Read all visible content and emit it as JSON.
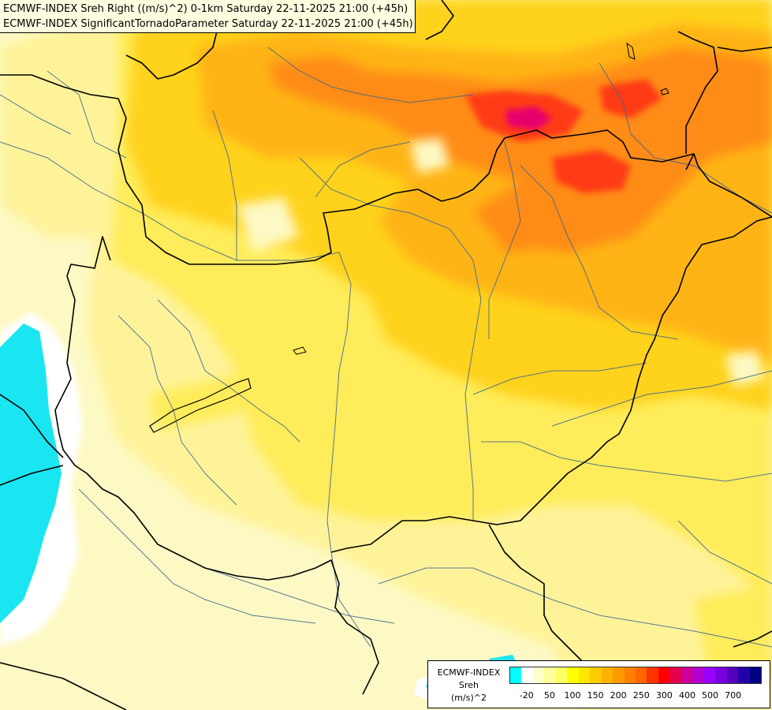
{
  "header": {
    "line1": "ECMWF-INDEX Sreh Right ((m/s)^2) 0-1km Saturday 22-11-2025 21:00 (+45h)",
    "line2": "ECMWF-INDEX SignificantTornadoParameter Saturday 22-11-2025 21:00 (+45h)"
  },
  "legend": {
    "source": "ECMWF-INDEX",
    "variable": "Sreh",
    "unit": "(m/s)^2",
    "colors": [
      "#00ffff",
      "#ffffff",
      "#ffffcc",
      "#ffff99",
      "#ffff66",
      "#ffff00",
      "#ffe600",
      "#ffcc00",
      "#ffb300",
      "#ff9900",
      "#ff8000",
      "#ff6600",
      "#ff3300",
      "#ff0000",
      "#e6004c",
      "#cc0099",
      "#b300cc",
      "#9900ff",
      "#7700dd",
      "#5500bb",
      "#2200aa",
      "#000080"
    ],
    "ticks": [
      {
        "label": "-20",
        "index": 1
      },
      {
        "label": "50",
        "index": 3
      },
      {
        "label": "100",
        "index": 5
      },
      {
        "label": "150",
        "index": 7
      },
      {
        "label": "200",
        "index": 9
      },
      {
        "label": "250",
        "index": 11
      },
      {
        "label": "300",
        "index": 13
      },
      {
        "label": "400",
        "index": 15
      },
      {
        "label": "500",
        "index": 17
      },
      {
        "label": "700",
        "index": 19
      }
    ]
  },
  "palette": {
    "cyan": "#19e6f0",
    "white": "#ffffff",
    "paleYellow": "#fdf9c4",
    "lightYellow": "#fff39a",
    "yellow": "#ffec5a",
    "gold": "#ffd21e",
    "orange": "#ffb414",
    "darkOrange": "#ff8c14",
    "red": "#ff3a14",
    "magenta": "#e6006e",
    "border": "#000000",
    "river": "#3c6490"
  }
}
